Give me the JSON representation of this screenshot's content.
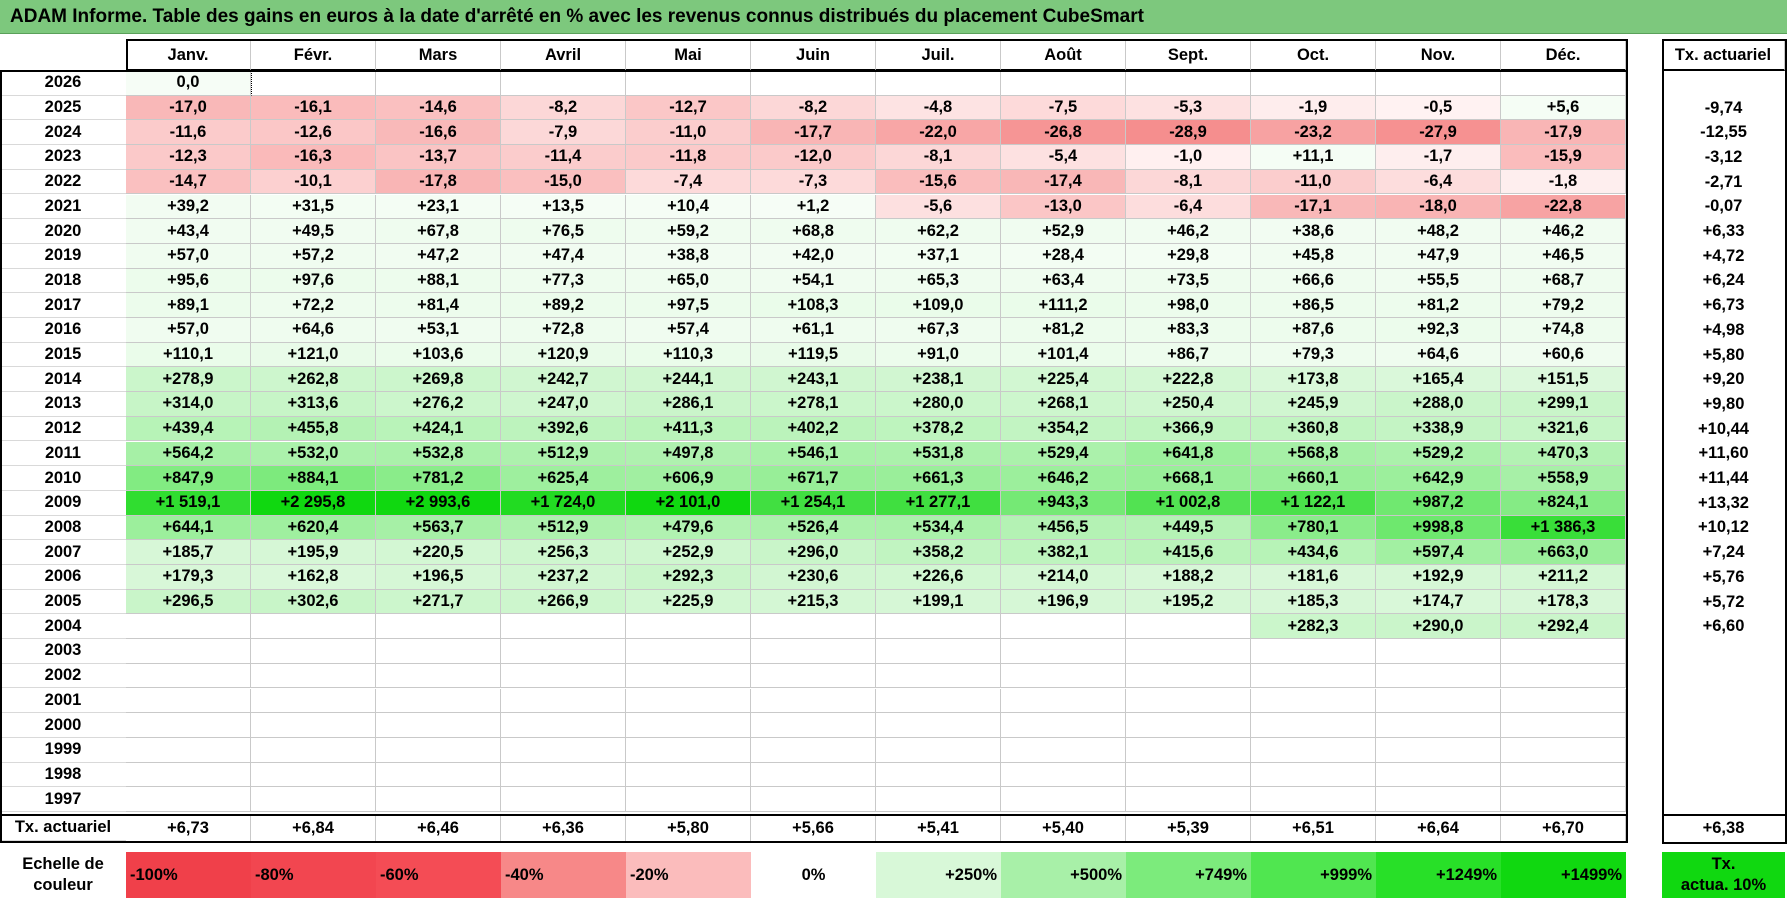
{
  "title": "ADAM Informe. Table des gains en euros à la date d'arrêté en % avec les revenus connus distribués du placement CubeSmart",
  "months": [
    "Janv.",
    "Févr.",
    "Mars",
    "Avril",
    "Mai",
    "Juin",
    "Juil.",
    "Août",
    "Sept.",
    "Oct.",
    "Nov.",
    "Déc."
  ],
  "actuarial_header": "Tx. actuariel",
  "rows": [
    {
      "year": "2026",
      "vals": [
        "0,0",
        "",
        "",
        "",
        "",
        "",
        "",
        "",
        "",
        "",
        "",
        ""
      ],
      "rate": ""
    },
    {
      "year": "2025",
      "vals": [
        "-17,0",
        "-16,1",
        "-14,6",
        "-8,2",
        "-12,7",
        "-8,2",
        "-4,8",
        "-7,5",
        "-5,3",
        "-1,9",
        "-0,5",
        "+5,6"
      ],
      "rate": "-9,74"
    },
    {
      "year": "2024",
      "vals": [
        "-11,6",
        "-12,6",
        "-16,6",
        "-7,9",
        "-11,0",
        "-17,7",
        "-22,0",
        "-26,8",
        "-28,9",
        "-23,2",
        "-27,9",
        "-17,9"
      ],
      "rate": "-12,55"
    },
    {
      "year": "2023",
      "vals": [
        "-12,3",
        "-16,3",
        "-13,7",
        "-11,4",
        "-11,8",
        "-12,0",
        "-8,1",
        "-5,4",
        "-1,0",
        "+11,1",
        "-1,7",
        "-15,9"
      ],
      "rate": "-3,12"
    },
    {
      "year": "2022",
      "vals": [
        "-14,7",
        "-10,1",
        "-17,8",
        "-15,0",
        "-7,4",
        "-7,3",
        "-15,6",
        "-17,4",
        "-8,1",
        "-11,0",
        "-6,4",
        "-1,8"
      ],
      "rate": "-2,71"
    },
    {
      "year": "2021",
      "vals": [
        "+39,2",
        "+31,5",
        "+23,1",
        "+13,5",
        "+10,4",
        "+1,2",
        "-5,6",
        "-13,0",
        "-6,4",
        "-17,1",
        "-18,0",
        "-22,8"
      ],
      "rate": "-0,07"
    },
    {
      "year": "2020",
      "vals": [
        "+43,4",
        "+49,5",
        "+67,8",
        "+76,5",
        "+59,2",
        "+68,8",
        "+62,2",
        "+52,9",
        "+46,2",
        "+38,6",
        "+48,2",
        "+46,2"
      ],
      "rate": "+6,33"
    },
    {
      "year": "2019",
      "vals": [
        "+57,0",
        "+57,2",
        "+47,2",
        "+47,4",
        "+38,8",
        "+42,0",
        "+37,1",
        "+28,4",
        "+29,8",
        "+45,8",
        "+47,9",
        "+46,5"
      ],
      "rate": "+4,72"
    },
    {
      "year": "2018",
      "vals": [
        "+95,6",
        "+97,6",
        "+88,1",
        "+77,3",
        "+65,0",
        "+54,1",
        "+65,3",
        "+63,4",
        "+73,5",
        "+66,6",
        "+55,5",
        "+68,7"
      ],
      "rate": "+6,24"
    },
    {
      "year": "2017",
      "vals": [
        "+89,1",
        "+72,2",
        "+81,4",
        "+89,2",
        "+97,5",
        "+108,3",
        "+109,0",
        "+111,2",
        "+98,0",
        "+86,5",
        "+81,2",
        "+79,2"
      ],
      "rate": "+6,73"
    },
    {
      "year": "2016",
      "vals": [
        "+57,0",
        "+64,6",
        "+53,1",
        "+72,8",
        "+57,4",
        "+61,1",
        "+67,3",
        "+81,2",
        "+83,3",
        "+87,6",
        "+92,3",
        "+74,8"
      ],
      "rate": "+4,98"
    },
    {
      "year": "2015",
      "vals": [
        "+110,1",
        "+121,0",
        "+103,6",
        "+120,9",
        "+110,3",
        "+119,5",
        "+91,0",
        "+101,4",
        "+86,7",
        "+79,3",
        "+64,6",
        "+60,6"
      ],
      "rate": "+5,80"
    },
    {
      "year": "2014",
      "vals": [
        "+278,9",
        "+262,8",
        "+269,8",
        "+242,7",
        "+244,1",
        "+243,1",
        "+238,1",
        "+225,4",
        "+222,8",
        "+173,8",
        "+165,4",
        "+151,5"
      ],
      "rate": "+9,20"
    },
    {
      "year": "2013",
      "vals": [
        "+314,0",
        "+313,6",
        "+276,2",
        "+247,0",
        "+286,1",
        "+278,1",
        "+280,0",
        "+268,1",
        "+250,4",
        "+245,9",
        "+288,0",
        "+299,1"
      ],
      "rate": "+9,80"
    },
    {
      "year": "2012",
      "vals": [
        "+439,4",
        "+455,8",
        "+424,1",
        "+392,6",
        "+411,3",
        "+402,2",
        "+378,2",
        "+354,2",
        "+366,9",
        "+360,8",
        "+338,9",
        "+321,6"
      ],
      "rate": "+10,44"
    },
    {
      "year": "2011",
      "vals": [
        "+564,2",
        "+532,0",
        "+532,8",
        "+512,9",
        "+497,8",
        "+546,1",
        "+531,8",
        "+529,4",
        "+641,8",
        "+568,8",
        "+529,2",
        "+470,3"
      ],
      "rate": "+11,60"
    },
    {
      "year": "2010",
      "vals": [
        "+847,9",
        "+884,1",
        "+781,2",
        "+625,4",
        "+606,9",
        "+671,7",
        "+661,3",
        "+646,2",
        "+668,1",
        "+660,1",
        "+642,9",
        "+558,9"
      ],
      "rate": "+11,44"
    },
    {
      "year": "2009",
      "vals": [
        "+1 519,1",
        "+2 295,8",
        "+2 993,6",
        "+1 724,0",
        "+2 101,0",
        "+1 254,1",
        "+1 277,1",
        "+943,3",
        "+1 002,8",
        "+1 122,1",
        "+987,2",
        "+824,1"
      ],
      "rate": "+13,32"
    },
    {
      "year": "2008",
      "vals": [
        "+644,1",
        "+620,4",
        "+563,7",
        "+512,9",
        "+479,6",
        "+526,4",
        "+534,4",
        "+456,5",
        "+449,5",
        "+780,1",
        "+998,8",
        "+1 386,3"
      ],
      "rate": "+10,12"
    },
    {
      "year": "2007",
      "vals": [
        "+185,7",
        "+195,9",
        "+220,5",
        "+256,3",
        "+252,9",
        "+296,0",
        "+358,2",
        "+382,1",
        "+415,6",
        "+434,6",
        "+597,4",
        "+663,0"
      ],
      "rate": "+7,24"
    },
    {
      "year": "2006",
      "vals": [
        "+179,3",
        "+162,8",
        "+196,5",
        "+237,2",
        "+292,3",
        "+230,6",
        "+226,6",
        "+214,0",
        "+188,2",
        "+181,6",
        "+192,9",
        "+211,2"
      ],
      "rate": "+5,76"
    },
    {
      "year": "2005",
      "vals": [
        "+296,5",
        "+302,6",
        "+271,7",
        "+266,9",
        "+225,9",
        "+215,3",
        "+199,1",
        "+196,9",
        "+195,2",
        "+185,3",
        "+174,7",
        "+178,3"
      ],
      "rate": "+5,72"
    },
    {
      "year": "2004",
      "vals": [
        "",
        "",
        "",
        "",
        "",
        "",
        "",
        "",
        "",
        "+282,3",
        "+290,0",
        "+292,4"
      ],
      "rate": "+6,60"
    },
    {
      "year": "2003",
      "vals": [
        "",
        "",
        "",
        "",
        "",
        "",
        "",
        "",
        "",
        "",
        "",
        ""
      ],
      "rate": ""
    },
    {
      "year": "2002",
      "vals": [
        "",
        "",
        "",
        "",
        "",
        "",
        "",
        "",
        "",
        "",
        "",
        ""
      ],
      "rate": ""
    },
    {
      "year": "2001",
      "vals": [
        "",
        "",
        "",
        "",
        "",
        "",
        "",
        "",
        "",
        "",
        "",
        ""
      ],
      "rate": ""
    },
    {
      "year": "2000",
      "vals": [
        "",
        "",
        "",
        "",
        "",
        "",
        "",
        "",
        "",
        "",
        "",
        ""
      ],
      "rate": ""
    },
    {
      "year": "1999",
      "vals": [
        "",
        "",
        "",
        "",
        "",
        "",
        "",
        "",
        "",
        "",
        "",
        ""
      ],
      "rate": ""
    },
    {
      "year": "1998",
      "vals": [
        "",
        "",
        "",
        "",
        "",
        "",
        "",
        "",
        "",
        "",
        "",
        ""
      ],
      "rate": ""
    },
    {
      "year": "1997",
      "vals": [
        "",
        "",
        "",
        "",
        "",
        "",
        "",
        "",
        "",
        "",
        "",
        ""
      ],
      "rate": ""
    }
  ],
  "footer": {
    "label": "Tx. actuariel",
    "vals": [
      "+6,73",
      "+6,84",
      "+6,46",
      "+6,36",
      "+5,80",
      "+5,66",
      "+5,41",
      "+5,40",
      "+5,39",
      "+6,51",
      "+6,64",
      "+6,70"
    ],
    "total": "+6,38"
  },
  "legend": {
    "label_line1": "Echelle de",
    "label_line2": "couleur",
    "items": [
      {
        "text": "-100%",
        "color": "#f0404a",
        "align": "left"
      },
      {
        "text": "-80%",
        "color": "#f24650",
        "align": "left"
      },
      {
        "text": "-60%",
        "color": "#f44c55",
        "align": "left"
      },
      {
        "text": "-40%",
        "color": "#f78888",
        "align": "left"
      },
      {
        "text": "-20%",
        "color": "#fbbcbc",
        "align": "left"
      },
      {
        "text": "0%",
        "color": "#ffffff",
        "align": "center"
      },
      {
        "text": "+250%",
        "color": "#d8f8d8",
        "align": "right"
      },
      {
        "text": "+500%",
        "color": "#a8f0a8",
        "align": "right"
      },
      {
        "text": "+749%",
        "color": "#7ceb7c",
        "align": "right"
      },
      {
        "text": "+999%",
        "color": "#50e650",
        "align": "right"
      },
      {
        "text": "+1249%",
        "color": "#28e028",
        "align": "right"
      },
      {
        "text": "+1499%",
        "color": "#10d810",
        "align": "right"
      }
    ],
    "rate_line1": "Tx.",
    "rate_line2": "actua. 10%",
    "rate_color": "#10d810"
  }
}
